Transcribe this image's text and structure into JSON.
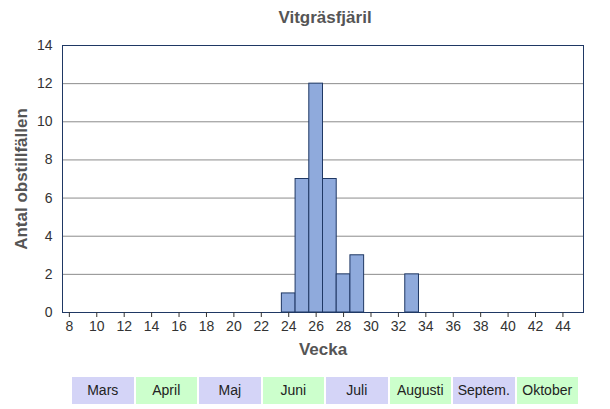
{
  "chart_data": {
    "type": "histogram",
    "title": "Vitgräsfjäril",
    "x_label": "Vecka",
    "y_label": "Antal obstillfällen",
    "bins": [
      23.5,
      24.5,
      25.5,
      26.5,
      27.5,
      28.5,
      29.5,
      30.5,
      31.5,
      32.5,
      33.5
    ],
    "values": [
      1,
      7,
      12,
      7,
      2,
      3,
      0,
      0,
      0,
      2
    ],
    "color": "#8faadc",
    "xlim": [
      7.5,
      45.5
    ],
    "xticks": [
      8,
      10,
      12,
      14,
      16,
      18,
      20,
      22,
      24,
      26,
      28,
      30,
      32,
      34,
      36,
      38,
      40,
      42,
      44
    ],
    "ylim": [
      0,
      14
    ],
    "yticks": [
      0,
      2,
      4,
      6,
      8,
      10,
      12,
      14
    ],
    "grid": true,
    "annotations": [
      "Mars",
      "April",
      "Maj",
      "Juni",
      "Juli",
      "Augusti",
      "Septem.",
      "Oktober"
    ]
  }
}
